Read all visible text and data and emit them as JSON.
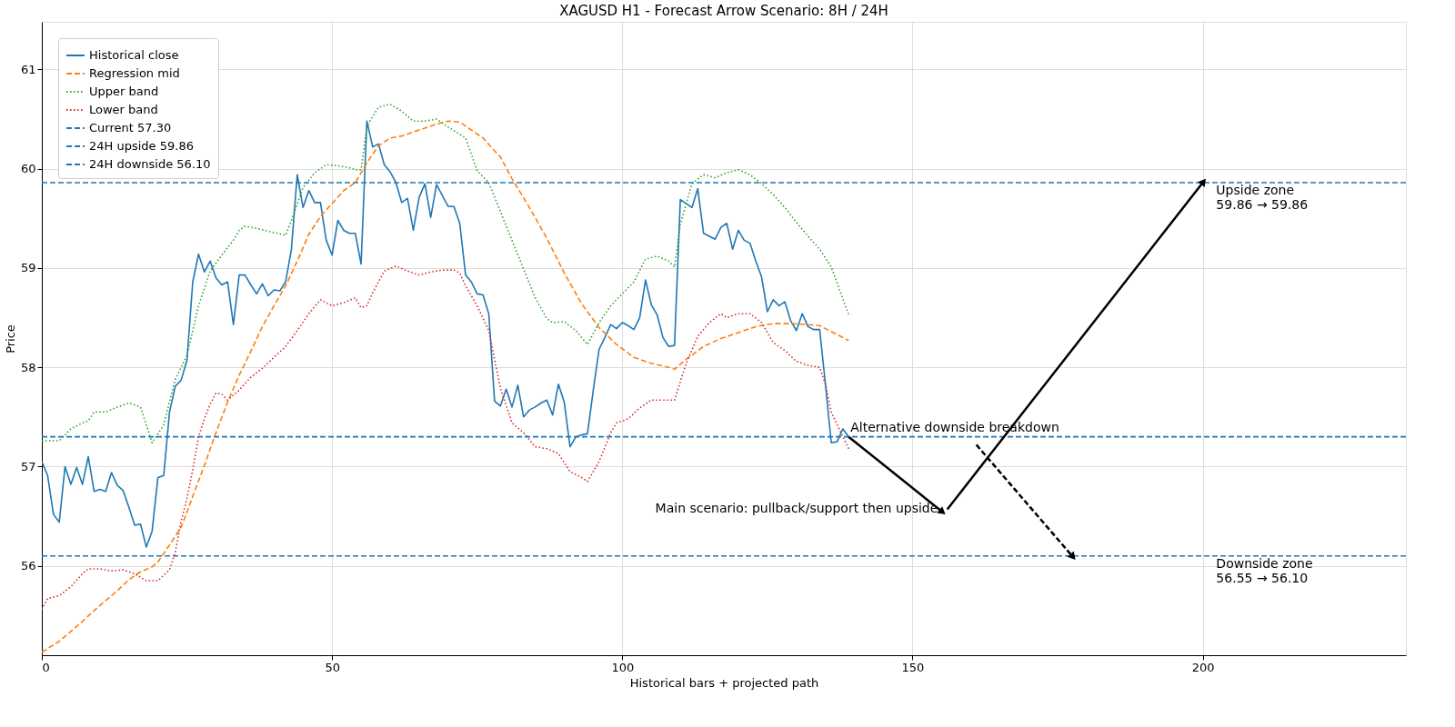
{
  "chart_data": {
    "type": "line",
    "title": "XAGUSD H1 - Forecast Arrow Scenario: 8H / 24H",
    "xlabel": "Historical bars + projected path",
    "ylabel": "Price",
    "x": [
      0,
      1,
      2,
      3,
      4,
      5,
      6,
      7,
      8,
      9,
      10,
      11,
      12,
      13,
      14,
      15,
      16,
      17,
      18,
      19,
      20,
      21,
      22,
      23,
      24,
      25,
      26,
      27,
      28,
      29,
      30,
      31,
      32,
      33,
      34,
      35,
      36,
      37,
      38,
      39,
      40,
      41,
      42,
      43,
      44,
      45,
      46,
      47,
      48,
      49,
      50,
      51,
      52,
      53,
      54,
      55,
      56,
      57,
      58,
      59,
      60,
      61,
      62,
      63,
      64,
      65,
      66,
      67,
      68,
      69,
      70,
      71,
      72,
      73,
      74,
      75,
      76,
      77,
      78,
      79,
      80,
      81,
      82,
      83,
      84,
      85,
      86,
      87,
      88,
      89,
      90,
      91,
      92,
      93,
      94,
      95,
      96,
      97,
      98,
      99,
      100,
      101,
      102,
      103,
      104,
      105,
      106,
      107,
      108,
      109,
      110,
      111,
      112,
      113,
      114,
      115,
      116,
      117,
      118,
      119,
      120,
      121,
      122,
      123,
      124,
      125,
      126,
      127,
      128,
      129,
      130,
      131,
      132,
      133,
      134,
      135,
      136,
      137,
      138,
      139
    ],
    "series": [
      {
        "name": "Historical close",
        "color": "#1f77b4",
        "line_style": "solid",
        "values": [
          57.05,
          56.91,
          56.52,
          56.44,
          57.0,
          56.82,
          56.99,
          56.82,
          57.1,
          56.75,
          56.77,
          56.75,
          56.94,
          56.81,
          56.76,
          56.59,
          56.41,
          56.42,
          56.19,
          56.35,
          56.89,
          56.91,
          57.55,
          57.81,
          57.87,
          58.07,
          58.86,
          59.14,
          58.96,
          59.07,
          58.9,
          58.83,
          58.86,
          58.43,
          58.93,
          58.93,
          58.83,
          58.74,
          58.84,
          58.72,
          58.78,
          58.77,
          58.86,
          59.19,
          59.94,
          59.61,
          59.78,
          59.66,
          59.66,
          59.28,
          59.13,
          59.48,
          59.38,
          59.35,
          59.35,
          59.04,
          60.48,
          60.22,
          60.25,
          60.04,
          59.97,
          59.86,
          59.66,
          59.7,
          59.38,
          59.71,
          59.85,
          59.51,
          59.84,
          59.73,
          59.62,
          59.62,
          59.45,
          58.93,
          58.86,
          58.74,
          58.73,
          58.54,
          57.66,
          57.61,
          57.78,
          57.6,
          57.82,
          57.5,
          57.57,
          57.6,
          57.64,
          57.67,
          57.52,
          57.83,
          57.65,
          57.2,
          57.3,
          57.32,
          57.33,
          57.77,
          58.18,
          58.3,
          58.43,
          58.39,
          58.45,
          58.42,
          58.38,
          58.5,
          58.88,
          58.63,
          58.53,
          58.3,
          58.21,
          58.22,
          59.69,
          59.65,
          59.61,
          59.8,
          59.35,
          59.32,
          59.29,
          59.41,
          59.45,
          59.19,
          59.38,
          59.28,
          59.25,
          59.07,
          58.91,
          58.56,
          58.68,
          58.62,
          58.66,
          58.47,
          58.37,
          58.54,
          58.41,
          58.38,
          58.38,
          57.83,
          57.24,
          57.25,
          57.38,
          57.3
        ]
      },
      {
        "name": "Regression mid",
        "color": "#ff7f0e",
        "line_style": "dashed",
        "x": [
          0,
          3,
          5,
          7,
          9,
          11,
          13,
          15,
          17,
          19,
          20,
          22,
          24,
          25,
          26,
          28,
          30,
          32,
          34,
          36,
          38,
          40,
          42,
          44,
          46,
          48,
          50,
          52,
          54,
          56,
          58,
          60,
          62,
          64,
          66,
          68,
          70,
          72,
          74,
          76,
          78,
          79,
          81,
          84,
          87,
          90,
          93,
          96,
          99,
          102,
          105,
          108,
          109,
          111,
          114,
          117,
          120,
          123,
          126,
          129,
          132,
          134,
          137,
          139
        ],
        "values": [
          55.13,
          55.24,
          55.34,
          55.44,
          55.55,
          55.65,
          55.75,
          55.86,
          55.94,
          55.99,
          56.04,
          56.21,
          56.39,
          56.54,
          56.7,
          57.01,
          57.34,
          57.65,
          57.92,
          58.16,
          58.41,
          58.62,
          58.82,
          59.07,
          59.34,
          59.52,
          59.65,
          59.78,
          59.86,
          60.06,
          60.23,
          60.31,
          60.33,
          60.37,
          60.41,
          60.45,
          60.48,
          60.47,
          60.39,
          60.31,
          60.18,
          60.12,
          59.9,
          59.61,
          59.3,
          58.95,
          58.64,
          58.4,
          58.23,
          58.1,
          58.04,
          58.0,
          57.98,
          58.08,
          58.21,
          58.29,
          58.35,
          58.41,
          58.44,
          58.44,
          58.43,
          58.42,
          58.33,
          58.27
        ]
      },
      {
        "name": "Upper band",
        "color": "#2ca02c",
        "line_style": "dotted",
        "x": [
          0,
          3,
          5,
          7,
          8,
          9,
          11,
          13,
          15,
          17,
          19,
          21,
          23,
          25,
          27,
          29,
          31,
          33,
          34,
          35,
          37,
          39,
          42,
          43,
          45,
          47,
          49,
          51,
          53,
          54,
          55,
          56,
          58,
          60,
          62,
          64,
          66,
          68,
          70,
          73,
          75,
          77,
          79,
          81,
          83,
          85,
          87,
          88,
          90,
          92,
          94,
          96,
          98,
          100,
          102,
          104,
          106,
          108,
          109,
          110,
          112,
          114,
          116,
          118,
          120,
          122,
          124,
          126,
          128,
          130,
          132,
          134,
          136,
          139
        ],
        "values": [
          57.26,
          57.26,
          57.38,
          57.44,
          57.46,
          57.55,
          57.55,
          57.6,
          57.64,
          57.6,
          57.24,
          57.42,
          57.88,
          58.12,
          58.62,
          58.97,
          59.13,
          59.28,
          59.38,
          59.42,
          59.4,
          59.37,
          59.33,
          59.48,
          59.81,
          59.96,
          60.04,
          60.03,
          60.01,
          59.99,
          59.99,
          60.43,
          60.62,
          60.65,
          60.58,
          60.48,
          60.48,
          60.5,
          60.42,
          60.31,
          59.98,
          59.86,
          59.57,
          59.28,
          58.99,
          58.7,
          58.49,
          58.45,
          58.46,
          58.37,
          58.23,
          58.45,
          58.62,
          58.74,
          58.86,
          59.09,
          59.12,
          59.07,
          59.01,
          59.44,
          59.85,
          59.94,
          59.91,
          59.96,
          59.99,
          59.94,
          59.85,
          59.74,
          59.61,
          59.46,
          59.32,
          59.19,
          59.01,
          58.53
        ]
      },
      {
        "name": "Lower band",
        "color": "#d62728",
        "line_style": "dotted",
        "x": [
          0,
          1,
          3,
          5,
          7,
          8,
          10,
          12,
          14,
          16,
          18,
          20,
          22,
          23,
          24,
          25,
          26,
          27,
          28,
          29,
          30,
          31,
          32,
          34,
          36,
          38,
          40,
          42,
          44,
          46,
          48,
          50,
          52,
          54,
          55,
          56,
          57,
          59,
          61,
          63,
          65,
          67,
          69,
          71,
          72,
          73,
          75,
          77,
          79,
          81,
          83,
          85,
          87,
          89,
          91,
          93,
          94,
          96,
          98,
          99,
          101,
          103,
          105,
          107,
          109,
          111,
          113,
          115,
          117,
          118,
          120,
          122,
          124,
          126,
          128,
          130,
          132,
          134,
          135,
          136,
          138,
          139
        ],
        "values": [
          55.56,
          55.67,
          55.7,
          55.79,
          55.92,
          55.97,
          55.97,
          55.95,
          55.96,
          55.92,
          55.85,
          55.85,
          55.96,
          56.14,
          56.45,
          56.68,
          56.97,
          57.3,
          57.48,
          57.63,
          57.74,
          57.73,
          57.67,
          57.77,
          57.9,
          57.99,
          58.1,
          58.21,
          58.37,
          58.54,
          58.68,
          58.62,
          58.65,
          58.7,
          58.6,
          58.62,
          58.75,
          58.97,
          59.02,
          58.97,
          58.93,
          58.96,
          58.98,
          58.98,
          58.95,
          58.82,
          58.62,
          58.37,
          57.79,
          57.44,
          57.34,
          57.2,
          57.18,
          57.13,
          56.95,
          56.89,
          56.85,
          57.05,
          57.34,
          57.44,
          57.48,
          57.59,
          57.67,
          57.67,
          57.67,
          58.04,
          58.31,
          58.45,
          58.54,
          58.5,
          58.54,
          58.54,
          58.45,
          58.25,
          58.17,
          58.06,
          58.02,
          58.0,
          57.83,
          57.55,
          57.3,
          57.18
        ]
      },
      {
        "color": "#000000",
        "line_style": "solid",
        "x": [
          139,
          155
        ],
        "values": [
          57.3,
          56.55
        ]
      },
      {
        "color": "#000000",
        "line_style": "solid",
        "x": [
          156,
          200
        ],
        "values": [
          56.57,
          59.86
        ]
      },
      {
        "color": "#000000",
        "line_style": "dashed",
        "x": [
          161,
          177.5
        ],
        "values": [
          57.22,
          56.1
        ]
      }
    ],
    "ref_lines": [
      {
        "axis": "y",
        "value": 57.3,
        "label": "Current 57.30",
        "color": "#1f77b4",
        "line_style": "dashed"
      },
      {
        "axis": "y",
        "value": 59.86,
        "label": "24H upside 59.86",
        "color": "#1f77b4",
        "line_style": "dashed"
      },
      {
        "axis": "y",
        "value": 56.1,
        "label": "24H downside 56.10",
        "color": "#1f77b4",
        "line_style": "dashed"
      }
    ],
    "annotations": [
      {
        "text": "Alternative downside breakdown",
        "x": 139,
        "y": 57.3
      },
      {
        "text": "Main scenario: pullback/support then upside",
        "x": 155,
        "y": 56.55
      },
      {
        "text": "Upside zone\n59.86 → 59.86",
        "x": 202,
        "y": 59.86
      },
      {
        "text": "Downside zone\n56.55 → 56.10",
        "x": 202,
        "y": 56.1
      }
    ],
    "xlim": [
      0,
      235
    ],
    "ylim": [
      55.1,
      61.48
    ],
    "xticks": [
      0,
      50,
      100,
      150,
      200
    ],
    "yticks": [
      56,
      57,
      58,
      59,
      60,
      61
    ],
    "grid": true,
    "legend": "top left"
  }
}
